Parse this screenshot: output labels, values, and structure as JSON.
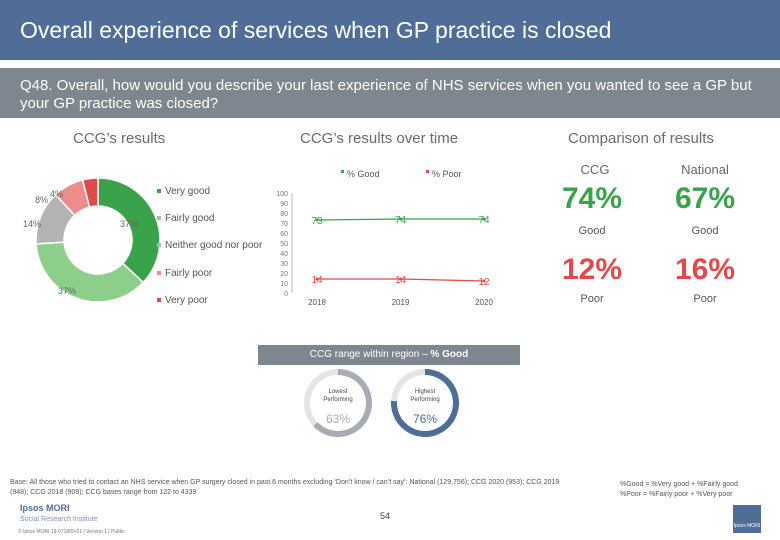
{
  "header": {
    "title": "Overall experience of services when GP practice is closed",
    "question": "Q48. Overall, how would you describe your last experience of NHS services when you wanted to see a GP but your GP practice was closed?"
  },
  "sections": {
    "ccg_results": "CCG’s results",
    "over_time": "CCG’s results over time",
    "comparison": "Comparison of results"
  },
  "colors": {
    "very_good": "#3aa24a",
    "fairly_good": "#8dcf8a",
    "neither": "#b3b3b3",
    "fairly_poor": "#ee8b8b",
    "very_poor": "#e04a4a",
    "good_line": "#3aa24a",
    "poor_line": "#e04a4a",
    "header": "#4f6d96"
  },
  "chart_data": [
    {
      "type": "pie",
      "title": "CCG’s results",
      "labels": [
        "Very good",
        "Fairly good",
        "Neither good nor poor",
        "Fairly poor",
        "Very poor"
      ],
      "values": [
        37,
        37,
        14,
        8,
        4
      ],
      "value_labels": [
        "37%",
        "37%",
        "14%",
        "8%",
        "4%"
      ]
    },
    {
      "type": "line",
      "title": "CCG’s results over time",
      "x": [
        "2018",
        "2019",
        "2020"
      ],
      "ylim": [
        0,
        100
      ],
      "yticks": [
        "0",
        "10",
        "20",
        "30",
        "40",
        "50",
        "60",
        "70",
        "80",
        "90",
        "100"
      ],
      "series": [
        {
          "name": "% Good",
          "values": [
            73,
            74,
            74
          ],
          "labels": [
            "73",
            "74",
            "74"
          ]
        },
        {
          "name": "% Poor",
          "values": [
            14,
            14,
            12
          ],
          "labels": [
            "14",
            "14",
            "12"
          ]
        }
      ]
    },
    {
      "type": "table",
      "title": "Comparison of results",
      "columns": [
        "CCG",
        "National"
      ],
      "rows": [
        {
          "label": "Good",
          "values": [
            "74%",
            "67%"
          ]
        },
        {
          "label": "Poor",
          "values": [
            "12%",
            "16%"
          ]
        }
      ]
    },
    {
      "type": "pie",
      "title": "CCG range within region – % Good",
      "items": [
        {
          "label": "Lowest Performing",
          "value": 63,
          "value_label": "63%"
        },
        {
          "label": "Highest Performing",
          "value": 76,
          "value_label": "76%"
        }
      ]
    }
  ],
  "range": {
    "title_prefix": "CCG range within region – ",
    "title_bold": "% Good"
  },
  "footer": {
    "base": "Base: All those who tried to contact an NHS service when GP surgery closed in past 6 months excluding ‘Don’t know / can’t say’: National (129,756); CCG 2020 (953); CCG 2019 (948); CCG 2018 (909); CCG bases range from 122 to 4339",
    "definition_good": "%Good = %Very good + %Fairly good",
    "definition_poor": "%Poor = %Fairly poor + %Very poor",
    "page": "54",
    "brand": "Ipsos MORI",
    "brand_sub": "Social Research Institute",
    "copyright": "© Ipsos MORI     19-071809-01 | Version 1 | Public"
  }
}
